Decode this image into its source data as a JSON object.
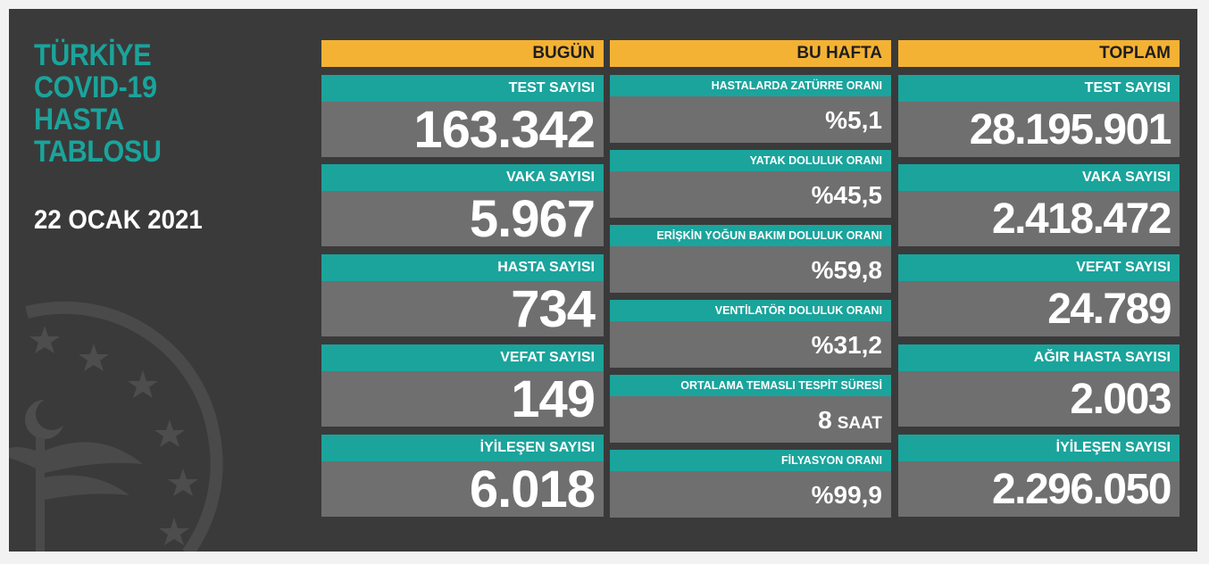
{
  "title": [
    "TÜRKİYE",
    "COVID-19",
    "HASTA",
    "TABLOSU"
  ],
  "date": "22 OCAK 2021",
  "colors": {
    "panel": "#3a3a3a",
    "teal": "#1aa49c",
    "header": "#f4b234",
    "value_bg": "#6f6f6f"
  },
  "today": {
    "header": "BUGÜN",
    "cards": [
      {
        "label": "TEST SAYISI",
        "value": "163.342"
      },
      {
        "label": "VAKA SAYISI",
        "value": "5.967"
      },
      {
        "label": "HASTA SAYISI",
        "value": "734"
      },
      {
        "label": "VEFAT SAYISI",
        "value": "149"
      },
      {
        "label": "İYİLEŞEN SAYISI",
        "value": "6.018"
      }
    ]
  },
  "week": {
    "header": "BU HAFTA",
    "cards": [
      {
        "label": "HASTALARDA ZATÜRRE ORANI",
        "value": "%5,1"
      },
      {
        "label": "YATAK DOLULUK ORANI",
        "value": "%45,5"
      },
      {
        "label": "ERİŞKİN YOĞUN BAKIM DOLULUK ORANI",
        "value": "%59,8"
      },
      {
        "label": "VENTİLATÖR DOLULUK ORANI",
        "value": "%31,2"
      },
      {
        "label": "ORTALAMA TEMASLI TESPİT SÜRESİ",
        "value": "8",
        "unit": "SAAT"
      },
      {
        "label": "FİLYASYON ORANI",
        "value": "%99,9"
      }
    ]
  },
  "total": {
    "header": "TOPLAM",
    "cards": [
      {
        "label": "TEST SAYISI",
        "value": "28.195.901"
      },
      {
        "label": "VAKA SAYISI",
        "value": "2.418.472"
      },
      {
        "label": "VEFAT SAYISI",
        "value": "24.789"
      },
      {
        "label": "AĞIR HASTA SAYISI",
        "value": "2.003"
      },
      {
        "label": "İYİLEŞEN SAYISI",
        "value": "2.296.050"
      }
    ]
  }
}
